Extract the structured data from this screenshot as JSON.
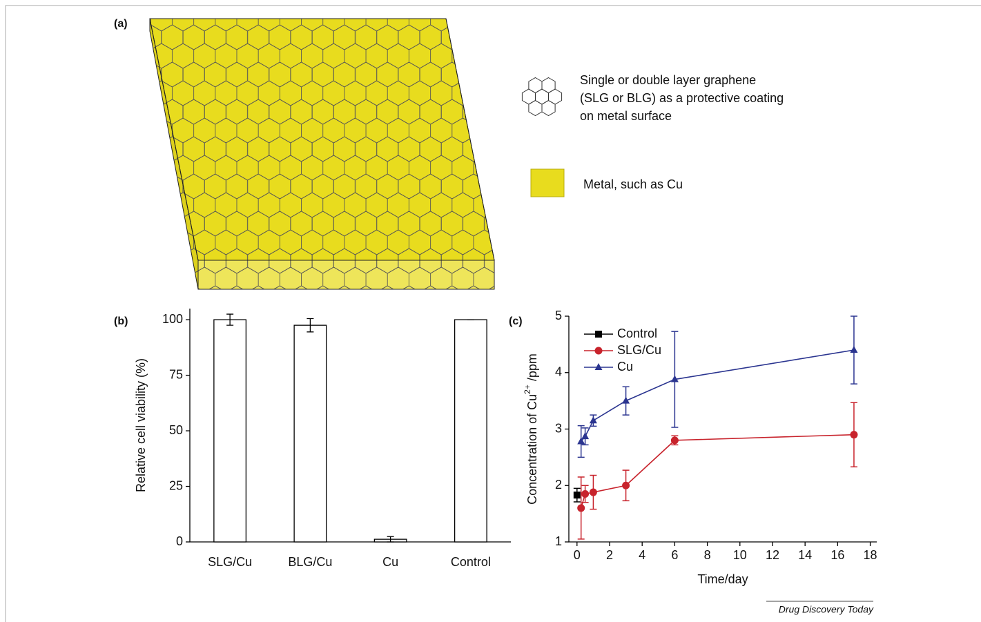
{
  "panel_labels": [
    "(a)",
    "(b)",
    "(c)"
  ],
  "diagram": {
    "graphene_label": [
      "Single or double layer graphene",
      "(SLG or BLG) as a protective coating",
      "on metal surface"
    ],
    "metal_label": "Metal, such as Cu"
  },
  "chart_data": [
    {
      "type": "bar",
      "ylabel": "Relative cell viability (%)",
      "categories": [
        "SLG/Cu",
        "BLG/Cu",
        "Cu",
        "Control"
      ],
      "values": [
        100,
        97.5,
        1.2,
        100
      ],
      "errors": [
        2.5,
        3,
        1.2,
        0
      ],
      "color": "#ffffff",
      "ylim": [
        0,
        105
      ],
      "yticks": [
        0,
        25,
        50,
        75,
        100
      ]
    },
    {
      "type": "line",
      "ylabel_parts": [
        "Concentration of Cu",
        "2+",
        " /ppm"
      ],
      "xlabel": "Time/day",
      "xlim": [
        -0.5,
        18.4
      ],
      "ylim": [
        1,
        5
      ],
      "xticks": [
        0,
        2,
        4,
        6,
        8,
        10,
        12,
        14,
        16,
        18
      ],
      "yticks": [
        1,
        2,
        3,
        4,
        5
      ],
      "legend": "upper left",
      "series": [
        {
          "name": "Control",
          "color": "#000000",
          "marker": "square",
          "x": [
            0
          ],
          "values": [
            1.83
          ],
          "errors": [
            0.12
          ]
        },
        {
          "name": "SLG/Cu",
          "color": "#c8232c",
          "marker": "circle",
          "x": [
            0.25,
            0.5,
            1,
            3,
            6,
            17
          ],
          "values": [
            1.6,
            1.85,
            1.88,
            2.0,
            2.8,
            2.9
          ],
          "errors": [
            0.55,
            0.15,
            0.3,
            0.27,
            0.08,
            0.57
          ]
        },
        {
          "name": "Cu",
          "color": "#2b3590",
          "marker": "triangle",
          "x": [
            0.25,
            0.5,
            1,
            3,
            6,
            17
          ],
          "values": [
            2.78,
            2.87,
            3.15,
            3.5,
            3.88,
            4.4
          ],
          "errors": [
            0.28,
            0.15,
            0.1,
            0.25,
            0.85,
            0.6
          ]
        }
      ]
    }
  ],
  "footer": "Drug Discovery Today"
}
